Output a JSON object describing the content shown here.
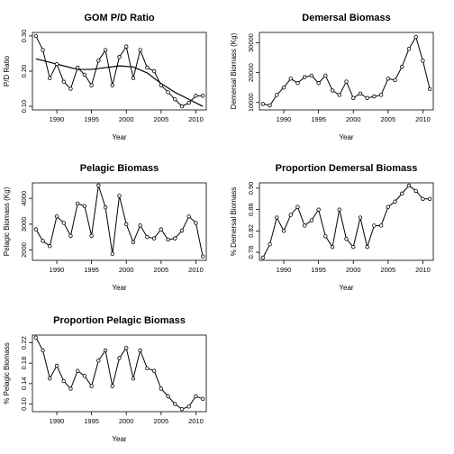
{
  "chart_data": [
    {
      "type": "line",
      "title": "GOM P/D Ratio",
      "xlabel": "Year",
      "ylabel": "P/D Ratio",
      "xlim": [
        1986.5,
        2011.5
      ],
      "ylim": [
        0.09,
        0.31
      ],
      "xticks": [
        "1990",
        "1995",
        "2000",
        "2005",
        "2010"
      ],
      "yticks": [
        "0.10",
        "0.20",
        "0.30"
      ],
      "x": [
        1987,
        1988,
        1989,
        1990,
        1991,
        1992,
        1993,
        1994,
        1995,
        1996,
        1997,
        1998,
        1999,
        2000,
        2001,
        2002,
        2003,
        2004,
        2005,
        2006,
        2007,
        2008,
        2009,
        2010,
        2011
      ],
      "values": [
        0.3,
        0.26,
        0.18,
        0.22,
        0.17,
        0.15,
        0.21,
        0.19,
        0.16,
        0.23,
        0.26,
        0.16,
        0.24,
        0.27,
        0.18,
        0.26,
        0.21,
        0.2,
        0.16,
        0.14,
        0.12,
        0.1,
        0.11,
        0.13,
        0.13
      ],
      "trend": {
        "x": [
          1987,
          1989,
          1991,
          1993,
          1995,
          1997,
          1999,
          2001,
          2003,
          2005,
          2007,
          2009,
          2011
        ],
        "values": [
          0.235,
          0.225,
          0.215,
          0.205,
          0.205,
          0.21,
          0.215,
          0.212,
          0.195,
          0.165,
          0.14,
          0.12,
          0.1
        ]
      }
    },
    {
      "type": "line",
      "title": "Demersal Biomass",
      "xlabel": "Year",
      "ylabel": "Demersal Biomass (Kg)",
      "xlim": [
        1986.5,
        2011.5
      ],
      "ylim": [
        7500,
        33500
      ],
      "xticks": [
        "1990",
        "1995",
        "2000",
        "2005",
        "2010"
      ],
      "yticks": [
        "10000",
        "20000",
        "30000"
      ],
      "x": [
        1987,
        1988,
        1989,
        1990,
        1991,
        1992,
        1993,
        1994,
        1995,
        1996,
        1997,
        1998,
        1999,
        2000,
        2001,
        2002,
        2003,
        2004,
        2005,
        2006,
        2007,
        2008,
        2009,
        2010,
        2011
      ],
      "values": [
        9500,
        9000,
        12500,
        15000,
        18000,
        16500,
        18500,
        19000,
        16500,
        19000,
        14000,
        12500,
        17000,
        11500,
        13000,
        11500,
        12000,
        12500,
        18000,
        17500,
        22000,
        28000,
        32000,
        24000,
        14500
      ]
    },
    {
      "type": "line",
      "title": "Pelagic Biomass",
      "xlabel": "Year",
      "ylabel": "Pelagic Biomass (Kg)",
      "xlim": [
        1986.5,
        2011.5
      ],
      "ylim": [
        1600,
        4600
      ],
      "xticks": [
        "1990",
        "1995",
        "2000",
        "2005",
        "2010"
      ],
      "yticks": [
        "2000",
        "3000",
        "4000"
      ],
      "x": [
        1987,
        1988,
        1989,
        1990,
        1991,
        1992,
        1993,
        1994,
        1995,
        1996,
        1997,
        1998,
        1999,
        2000,
        2001,
        2002,
        2003,
        2004,
        2005,
        2006,
        2007,
        2008,
        2009,
        2010,
        2011
      ],
      "values": [
        2800,
        2350,
        2150,
        3300,
        3050,
        2550,
        3800,
        3700,
        2550,
        4500,
        3650,
        1850,
        4100,
        3000,
        2300,
        2950,
        2500,
        2450,
        2800,
        2400,
        2450,
        2750,
        3300,
        3050,
        1750
      ]
    },
    {
      "type": "line",
      "title": "Proportion Demersal Biomass",
      "xlabel": "Year",
      "ylabel": "% Demersal Biomass",
      "xlim": [
        1986.5,
        2011.5
      ],
      "ylim": [
        0.765,
        0.91
      ],
      "xticks": [
        "1990",
        "1995",
        "2000",
        "2005",
        "2010"
      ],
      "yticks": [
        "0.78",
        "0.82",
        "0.86",
        "0.90"
      ],
      "x": [
        1987,
        1988,
        1989,
        1990,
        1991,
        1992,
        1993,
        1994,
        1995,
        1996,
        1997,
        1998,
        1999,
        2000,
        2001,
        2002,
        2003,
        2004,
        2005,
        2006,
        2007,
        2008,
        2009,
        2010,
        2011
      ],
      "values": [
        0.77,
        0.795,
        0.845,
        0.82,
        0.85,
        0.865,
        0.83,
        0.84,
        0.86,
        0.81,
        0.79,
        0.86,
        0.805,
        0.79,
        0.845,
        0.79,
        0.83,
        0.83,
        0.865,
        0.875,
        0.89,
        0.905,
        0.895,
        0.88,
        0.88
      ]
    },
    {
      "type": "line",
      "title": "Proportion Pelagic Biomass",
      "xlabel": "Year",
      "ylabel": "% Pelagic Biomass",
      "xlim": [
        1986.5,
        2011.5
      ],
      "ylim": [
        0.085,
        0.235
      ],
      "xticks": [
        "1990",
        "1995",
        "2000",
        "2005",
        "2010"
      ],
      "yticks": [
        "0.10",
        "0.14",
        "0.18",
        "0.22"
      ],
      "x": [
        1987,
        1988,
        1989,
        1990,
        1991,
        1992,
        1993,
        1994,
        1995,
        1996,
        1997,
        1998,
        1999,
        2000,
        2001,
        2002,
        2003,
        2004,
        2005,
        2006,
        2007,
        2008,
        2009,
        2010,
        2011
      ],
      "values": [
        0.23,
        0.205,
        0.15,
        0.175,
        0.145,
        0.13,
        0.165,
        0.155,
        0.135,
        0.185,
        0.205,
        0.135,
        0.19,
        0.21,
        0.15,
        0.205,
        0.17,
        0.165,
        0.13,
        0.115,
        0.1,
        0.09,
        0.095,
        0.115,
        0.11
      ]
    }
  ]
}
